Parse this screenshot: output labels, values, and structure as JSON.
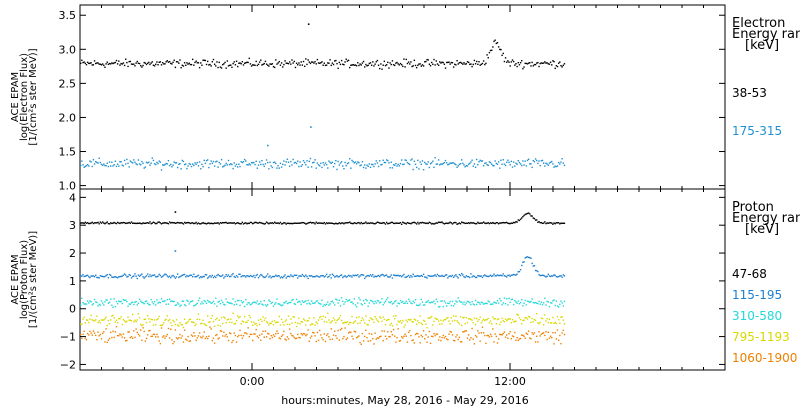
{
  "chart_data": [
    {
      "type": "scatter",
      "panel": "electron",
      "ylabel_lines": [
        "ACE EPAM",
        "log(Electron Flux)",
        "[1/(cm²s ster MeV)]"
      ],
      "ylim": [
        0.95,
        3.65
      ],
      "yticks": [
        1.0,
        1.5,
        2.0,
        2.5,
        3.0,
        3.5
      ],
      "ytick_labels": [
        "1.0",
        "1.5",
        "2.0",
        "2.5",
        "3.0",
        "3.5"
      ],
      "legend_title_lines": [
        "Electron",
        "Energy range",
        "[keV]"
      ],
      "series": [
        {
          "name": "38-53",
          "color": "#000000",
          "base": 2.8,
          "noise": 0.05,
          "bumps": [
            {
              "at": 11.3,
              "height": 0.3
            }
          ],
          "spikes": [
            {
              "at": 2.6,
              "value": 3.38
            }
          ]
        },
        {
          "name": "175-315",
          "color": "#1E90D0",
          "base": 1.33,
          "noise": 0.06,
          "bumps": [],
          "spikes": [
            {
              "at": 2.7,
              "value": 1.87
            },
            {
              "at": 0.7,
              "value": 1.6
            }
          ]
        }
      ]
    },
    {
      "type": "scatter",
      "panel": "proton",
      "ylabel_lines": [
        "ACE EPAM",
        "log(Proton Flux)",
        "[1/(cm²s ster MeV)]"
      ],
      "ylim": [
        -2.2,
        4.3
      ],
      "yticks": [
        -2,
        -1,
        0,
        1,
        2,
        3,
        4
      ],
      "ytick_labels": [
        "−2",
        "−1",
        "0",
        "1",
        "2",
        "3",
        "4"
      ],
      "legend_title_lines": [
        "Proton",
        "Energy range",
        "[keV]"
      ],
      "series": [
        {
          "name": "47-68",
          "color": "#000000",
          "base": 3.1,
          "noise": 0.03,
          "bumps": [
            {
              "at": 12.8,
              "height": 0.35
            }
          ],
          "spikes": [
            {
              "at": -3.6,
              "value": 3.5
            }
          ]
        },
        {
          "name": "115-195",
          "color": "#1E7FD0",
          "base": 1.2,
          "noise": 0.06,
          "bumps": [
            {
              "at": 12.8,
              "height": 0.7
            }
          ],
          "spikes": [
            {
              "at": -3.6,
              "value": 2.1
            }
          ]
        },
        {
          "name": "310-580",
          "color": "#22D8D8",
          "base": 0.25,
          "noise": 0.12,
          "bumps": [],
          "spikes": []
        },
        {
          "name": "795-1193",
          "color": "#D8D800",
          "base": -0.4,
          "noise": 0.18,
          "bumps": [],
          "spikes": []
        },
        {
          "name": "1060-1900",
          "color": "#F08000",
          "base": -0.95,
          "noise": 0.22,
          "bumps": [],
          "spikes": []
        }
      ]
    }
  ],
  "x_axis": {
    "range_hours": [
      -8,
      22
    ],
    "data_span_hours": [
      -8,
      14.5
    ],
    "ticks_hours": [
      0,
      12
    ],
    "tick_labels": [
      "0:00",
      "12:00"
    ],
    "label": "hours:minutes, May 28, 2016 - May 29, 2016"
  }
}
